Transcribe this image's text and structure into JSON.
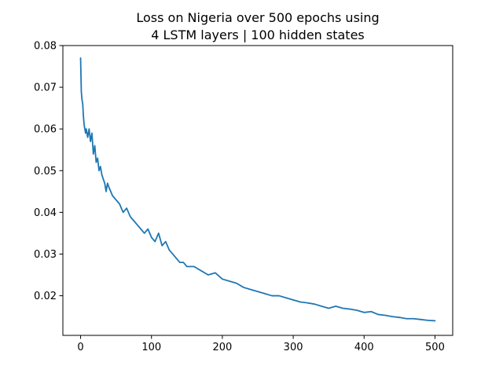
{
  "chart_data": {
    "type": "line",
    "title_lines": [
      "Loss on Nigeria over 500 epochs using",
      "4 LSTM layers | 100 hidden states"
    ],
    "xlabel": "",
    "ylabel": "",
    "xlim": [
      -25,
      525
    ],
    "ylim": [
      0.0105,
      0.08
    ],
    "xticks": [
      0,
      100,
      200,
      300,
      400,
      500
    ],
    "xtick_labels": [
      "0",
      "100",
      "200",
      "300",
      "400",
      "500"
    ],
    "yticks": [
      0.02,
      0.03,
      0.04,
      0.05,
      0.06,
      0.07,
      0.08
    ],
    "ytick_labels": [
      "0.02",
      "0.03",
      "0.04",
      "0.05",
      "0.06",
      "0.07",
      "0.08"
    ],
    "grid": false,
    "legend": "none",
    "series": [
      {
        "color": "#1f77b4",
        "x": [
          0,
          1,
          2,
          3,
          4,
          5,
          6,
          7,
          8,
          10,
          12,
          14,
          16,
          18,
          20,
          22,
          24,
          26,
          28,
          30,
          32,
          34,
          36,
          38,
          40,
          45,
          50,
          55,
          60,
          65,
          70,
          75,
          80,
          85,
          90,
          95,
          100,
          105,
          110,
          115,
          120,
          125,
          130,
          135,
          140,
          145,
          150,
          160,
          170,
          180,
          190,
          200,
          210,
          220,
          230,
          240,
          250,
          260,
          270,
          280,
          290,
          300,
          310,
          320,
          330,
          340,
          350,
          360,
          370,
          380,
          390,
          400,
          410,
          420,
          430,
          440,
          450,
          460,
          470,
          480,
          490,
          500
        ],
        "y": [
          0.077,
          0.069,
          0.067,
          0.066,
          0.063,
          0.061,
          0.06,
          0.059,
          0.06,
          0.058,
          0.06,
          0.057,
          0.059,
          0.054,
          0.056,
          0.052,
          0.053,
          0.05,
          0.051,
          0.049,
          0.048,
          0.047,
          0.045,
          0.047,
          0.046,
          0.044,
          0.043,
          0.042,
          0.04,
          0.041,
          0.039,
          0.038,
          0.037,
          0.036,
          0.035,
          0.036,
          0.034,
          0.033,
          0.035,
          0.032,
          0.033,
          0.031,
          0.03,
          0.029,
          0.028,
          0.028,
          0.027,
          0.027,
          0.026,
          0.025,
          0.0255,
          0.024,
          0.0235,
          0.023,
          0.022,
          0.0215,
          0.021,
          0.0205,
          0.02,
          0.02,
          0.0195,
          0.019,
          0.0185,
          0.0183,
          0.018,
          0.0175,
          0.017,
          0.0175,
          0.017,
          0.0168,
          0.0165,
          0.016,
          0.0162,
          0.0155,
          0.0153,
          0.015,
          0.0148,
          0.0145,
          0.0145,
          0.0143,
          0.0141,
          0.014
        ]
      }
    ]
  }
}
